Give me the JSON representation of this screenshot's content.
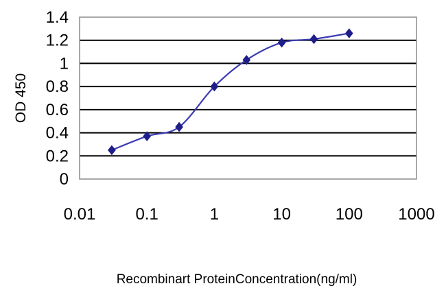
{
  "chart_data": {
    "type": "line",
    "title": "",
    "xlabel": "Recombinart ProteinConcentration(ng/ml)",
    "ylabel": "OD 450",
    "x_scale": "log",
    "xlim": [
      0.01,
      1000
    ],
    "ylim": [
      0,
      1.4
    ],
    "x_ticks": [
      0.01,
      0.1,
      1,
      10,
      100,
      1000
    ],
    "x_tick_labels": [
      "0.01",
      "0.1",
      "1",
      "10",
      "100",
      "1000"
    ],
    "y_ticks": [
      0,
      0.2,
      0.4,
      0.6,
      0.8,
      1,
      1.2,
      1.4
    ],
    "y_tick_labels": [
      "0",
      "0.2",
      "0.4",
      "0.6",
      "0.8",
      "1",
      "1.2",
      "1.4"
    ],
    "grid": "horizontal",
    "series": [
      {
        "x": [
          0.03,
          0.1,
          0.3,
          1,
          3,
          10,
          30,
          100
        ],
        "y": [
          0.25,
          0.37,
          0.45,
          0.8,
          1.03,
          1.18,
          1.21,
          1.26
        ]
      }
    ],
    "colors": {
      "line": "#3b3bb3",
      "marker": "#1e1e8a",
      "grid": "#000000",
      "plot_border": "#8c8c8c",
      "background": "#ffffff"
    }
  }
}
